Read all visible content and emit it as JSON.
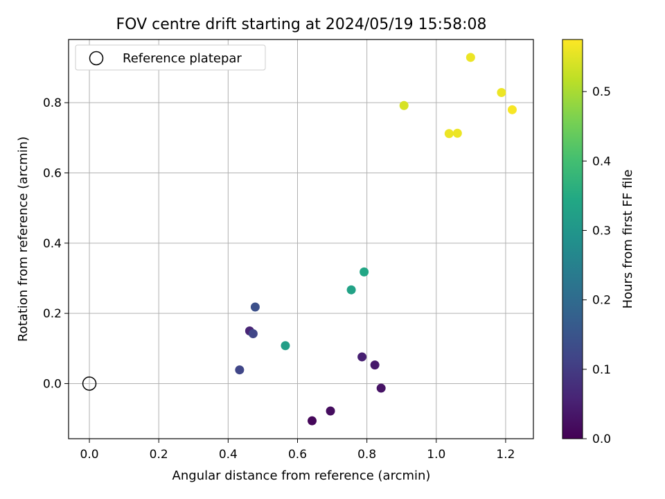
{
  "chart_data": {
    "type": "scatter",
    "title": "FOV centre drift starting at 2024/05/19 15:58:08",
    "xlabel": "Angular distance from reference (arcmin)",
    "ylabel": "Rotation from reference (arcmin)",
    "xlim": [
      -0.06,
      1.28
    ],
    "ylim": [
      -0.157,
      0.98
    ],
    "xticks": [
      "0.0",
      "0.2",
      "0.4",
      "0.6",
      "0.8",
      "1.0",
      "1.2"
    ],
    "yticks": [
      "0.0",
      "0.2",
      "0.4",
      "0.6",
      "0.8"
    ],
    "grid": true,
    "legend": {
      "placement": "top-left",
      "entries": [
        "Reference platepar"
      ]
    },
    "reference_point": {
      "x": 0.0,
      "y": 0.0
    },
    "colorbar": {
      "label": "Hours from first FF file",
      "range": [
        0.0,
        0.575
      ],
      "ticks": [
        "0.0",
        "0.1",
        "0.2",
        "0.3",
        "0.4",
        "0.5"
      ],
      "colormap": "viridis"
    },
    "points": [
      {
        "x": 0.642,
        "y": -0.106,
        "c": 0.01
      },
      {
        "x": 0.695,
        "y": -0.078,
        "c": 0.02
      },
      {
        "x": 0.841,
        "y": -0.013,
        "c": 0.03
      },
      {
        "x": 0.823,
        "y": 0.053,
        "c": 0.04
      },
      {
        "x": 0.786,
        "y": 0.076,
        "c": 0.05
      },
      {
        "x": 0.462,
        "y": 0.15,
        "c": 0.06
      },
      {
        "x": 0.433,
        "y": 0.039,
        "c": 0.12
      },
      {
        "x": 0.472,
        "y": 0.142,
        "c": 0.12
      },
      {
        "x": 0.478,
        "y": 0.218,
        "c": 0.14
      },
      {
        "x": 0.565,
        "y": 0.108,
        "c": 0.32
      },
      {
        "x": 0.755,
        "y": 0.267,
        "c": 0.33
      },
      {
        "x": 0.792,
        "y": 0.318,
        "c": 0.34
      },
      {
        "x": 0.907,
        "y": 0.792,
        "c": 0.54
      },
      {
        "x": 1.037,
        "y": 0.712,
        "c": 0.56
      },
      {
        "x": 1.061,
        "y": 0.713,
        "c": 0.56
      },
      {
        "x": 1.099,
        "y": 0.929,
        "c": 0.56
      },
      {
        "x": 1.188,
        "y": 0.829,
        "c": 0.56
      },
      {
        "x": 1.219,
        "y": 0.78,
        "c": 0.57
      }
    ]
  }
}
